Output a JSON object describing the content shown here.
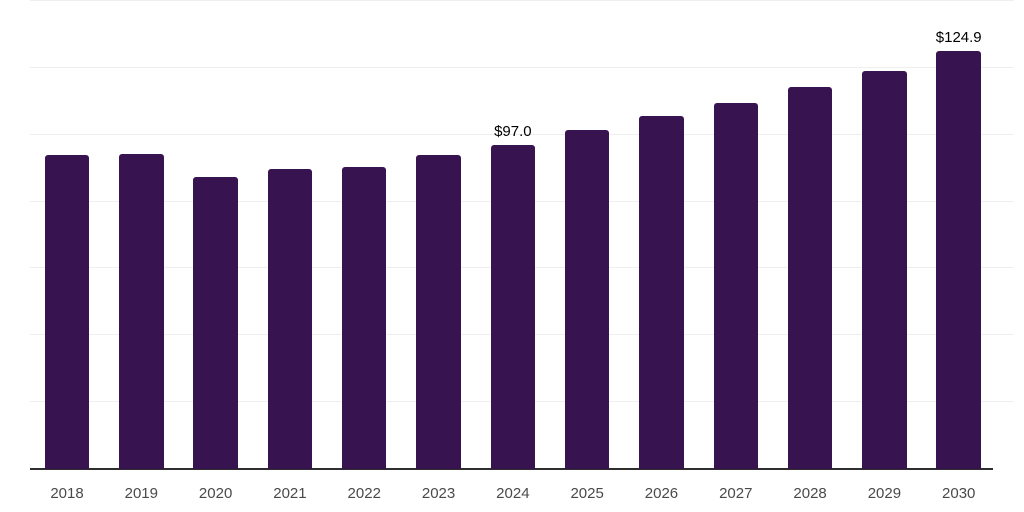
{
  "chart_data": {
    "type": "bar",
    "title": "",
    "xlabel": "",
    "ylabel": "",
    "categories": [
      "2018",
      "2019",
      "2020",
      "2021",
      "2022",
      "2023",
      "2024",
      "2025",
      "2026",
      "2027",
      "2028",
      "2029",
      "2030"
    ],
    "values": [
      93.8,
      94.2,
      87.5,
      89.6,
      90.2,
      93.8,
      97.0,
      101.3,
      105.6,
      109.6,
      114.3,
      119.2,
      124.9
    ],
    "data_labels": {
      "2024": "$97.0",
      "2030": "$124.9"
    },
    "ylim": [
      0,
      140
    ],
    "grid_step": 20,
    "grid": "horizontal-only, no y-axis tick labels",
    "legend": "none",
    "colors": {
      "bar": "#371350",
      "gridline": "#eeeeee",
      "axis_line": "#2e2e2e",
      "x_tick_label": "#4a4a4a",
      "data_label": "#000000",
      "background": "#ffffff"
    }
  }
}
